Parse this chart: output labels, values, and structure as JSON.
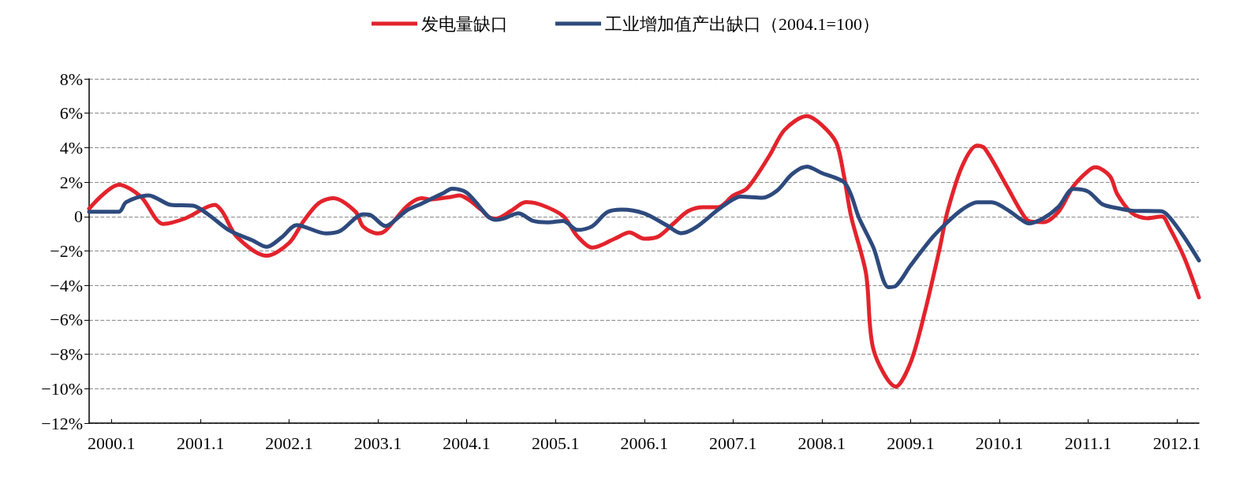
{
  "chart_data": {
    "type": "line",
    "legend": "top",
    "grid": "y",
    "line_style": "solid",
    "marker": "none",
    "xlim": [
      "1999-10",
      "2012-04"
    ],
    "xticks": [
      {
        "value": "2000-01",
        "label": "2000.1"
      },
      {
        "value": "2001-01",
        "label": "2001.1"
      },
      {
        "value": "2002-01",
        "label": "2002.1"
      },
      {
        "value": "2003-01",
        "label": "2003.1"
      },
      {
        "value": "2004-01",
        "label": "2004.1"
      },
      {
        "value": "2005-01",
        "label": "2005.1"
      },
      {
        "value": "2006-01",
        "label": "2006.1"
      },
      {
        "value": "2007-01",
        "label": "2007.1"
      },
      {
        "value": "2008-01",
        "label": "2008.1"
      },
      {
        "value": "2009-01",
        "label": "2009.1"
      },
      {
        "value": "2010-01",
        "label": "2010.1"
      },
      {
        "value": "2011-01",
        "label": "2011.1"
      },
      {
        "value": "2012-01",
        "label": "2012.1"
      }
    ],
    "ylim": [
      -12,
      8
    ],
    "yticks": [
      {
        "value": -12,
        "label": "−12%"
      },
      {
        "value": -10,
        "label": "−10%"
      },
      {
        "value": -8,
        "label": "−8%"
      },
      {
        "value": -6,
        "label": "−6%"
      },
      {
        "value": -4,
        "label": "−4%"
      },
      {
        "value": -2,
        "label": "−2%"
      },
      0,
      {
        "value": 2,
        "label": "2%"
      },
      {
        "value": 4,
        "label": "4%"
      },
      {
        "value": 6,
        "label": "6%"
      },
      {
        "value": 8,
        "label": "8%"
      }
    ],
    "series": [
      {
        "name": "发电量缺口",
        "color": "#e3232c",
        "x": [
          "1999-10",
          "2000-02",
          "2000-05",
          "2000-08",
          "2000-11",
          "2001-03",
          "2001-04",
          "2001-06",
          "2001-10",
          "2002-01",
          "2002-03",
          "2002-05",
          "2002-07",
          "2002-10",
          "2002-11",
          "2003-01",
          "2003-02",
          "2003-05",
          "2003-07",
          "2003-08",
          "2003-11",
          "2003-12",
          "2004-03",
          "2004-04",
          "2004-05",
          "2004-07",
          "2004-09",
          "2004-11",
          "2005-02",
          "2005-04",
          "2005-06",
          "2005-09",
          "2005-11",
          "2006-01",
          "2006-03",
          "2006-05",
          "2006-07",
          "2006-09",
          "2006-11",
          "2007-01",
          "2007-03",
          "2007-06",
          "2007-08",
          "2007-11",
          "2008-01",
          "2008-03",
          "2008-04",
          "2008-05",
          "2008-07",
          "2008-08",
          "2008-11",
          "2009-01",
          "2009-03",
          "2009-05",
          "2009-06",
          "2009-08",
          "2009-10",
          "2009-11",
          "2010-02",
          "2010-04",
          "2010-05",
          "2010-07",
          "2010-09",
          "2010-11",
          "2011-01",
          "2011-02",
          "2011-04",
          "2011-05",
          "2011-07",
          "2011-09",
          "2011-11",
          "2011-12",
          "2012-02",
          "2012-04"
        ],
        "values": [
          0.45,
          1.85,
          1.15,
          -0.43,
          -0.1,
          0.68,
          0.28,
          -1.2,
          -2.28,
          -1.53,
          -0.27,
          0.76,
          1.07,
          0.28,
          -0.58,
          -0.98,
          -0.82,
          0.6,
          1.07,
          0.99,
          1.15,
          1.23,
          0.4,
          -0.04,
          -0.12,
          0.32,
          0.84,
          0.69,
          0.03,
          -1.15,
          -1.81,
          -1.29,
          -0.93,
          -1.29,
          -1.15,
          -0.41,
          0.32,
          0.54,
          0.54,
          1.21,
          1.65,
          3.56,
          5.03,
          5.84,
          5.32,
          4.29,
          2.4,
          0,
          -3.29,
          -7.73,
          -9.88,
          -8.47,
          -5.51,
          -1.81,
          0.27,
          2.93,
          4.12,
          3.97,
          1.75,
          0.27,
          -0.25,
          -0.33,
          0.27,
          1.75,
          2.64,
          2.86,
          2.34,
          1.3,
          0.19,
          -0.1,
          0,
          -0.62,
          -2.4,
          -4.7
        ]
      },
      {
        "name": "工业增加值产出缺口（2004.1=100）",
        "color": "#2e4a7d",
        "x": [
          "1999-10",
          "2000-02",
          "2000-03",
          "2000-06",
          "2000-09",
          "2000-12",
          "2001-02",
          "2001-05",
          "2001-08",
          "2001-10",
          "2001-12",
          "2002-02",
          "2002-06",
          "2002-08",
          "2002-11",
          "2002-12",
          "2003-02",
          "2003-03",
          "2003-05",
          "2003-07",
          "2003-10",
          "2003-11",
          "2004-01",
          "2004-04",
          "2004-05",
          "2004-06",
          "2004-08",
          "2004-10",
          "2004-12",
          "2005-02",
          "2005-04",
          "2005-06",
          "2005-08",
          "2005-10",
          "2006-01",
          "2006-04",
          "2006-06",
          "2006-08",
          "2006-11",
          "2007-01",
          "2007-02",
          "2007-05",
          "2007-07",
          "2007-09",
          "2007-11",
          "2008-01",
          "2008-04",
          "2008-05",
          "2008-06",
          "2008-08",
          "2008-10",
          "2008-11",
          "2009-01",
          "2009-04",
          "2009-06",
          "2009-08",
          "2009-10",
          "2009-12",
          "2010-02",
          "2010-04",
          "2010-05",
          "2010-07",
          "2010-09",
          "2010-11",
          "2011-01",
          "2011-03",
          "2011-05",
          "2011-07",
          "2011-11",
          "2011-12",
          "2012-02",
          "2012-04"
        ],
        "values": [
          0.28,
          0.28,
          0.83,
          1.23,
          0.68,
          0.63,
          0.13,
          -0.82,
          -1.37,
          -1.76,
          -1.21,
          -0.5,
          -0.98,
          -0.82,
          0.13,
          0.09,
          -0.55,
          -0.35,
          0.36,
          0.76,
          1.39,
          1.62,
          1.39,
          -0.03,
          -0.19,
          -0.12,
          0.18,
          -0.26,
          -0.34,
          -0.26,
          -0.78,
          -0.56,
          0.25,
          0.4,
          0.18,
          -0.49,
          -0.97,
          -0.63,
          0.4,
          0.99,
          1.16,
          1.09,
          1.5,
          2.46,
          2.9,
          2.53,
          2.01,
          1.25,
          -0.03,
          -1.81,
          -4.1,
          -4.03,
          -2.84,
          -1.21,
          -0.33,
          0.41,
          0.83,
          0.83,
          0.41,
          -0.18,
          -0.4,
          -0.1,
          0.56,
          1.6,
          1.45,
          0.71,
          0.49,
          0.34,
          0.3,
          -0.03,
          -1.21,
          -2.55
        ]
      }
    ]
  }
}
